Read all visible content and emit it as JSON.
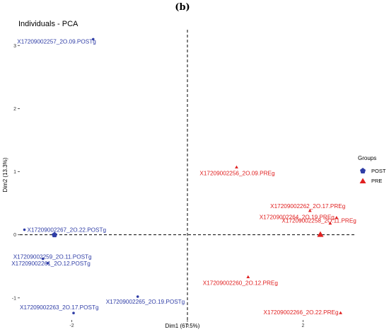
{
  "panel_label": "(b)",
  "chart_data": {
    "type": "scatter",
    "title": "Individuals - PCA",
    "xlabel": "Dim1 (67.5%)",
    "ylabel": "Dim2 (13.3%)",
    "xlim": [
      -2.9,
      2.9
    ],
    "ylim": [
      -1.35,
      3.25
    ],
    "xticks": [
      -2,
      0,
      2
    ],
    "yticks": [
      -1,
      0,
      1,
      2,
      3
    ],
    "reference_lines": {
      "x": 0,
      "y": 0,
      "style": "dashed"
    },
    "legend": {
      "title": "Groups",
      "position": "right",
      "entries": [
        "POST",
        "PRE"
      ]
    },
    "colors": {
      "POST": "#2f3da6",
      "PRE": "#e02020"
    },
    "series": [
      {
        "name": "POST",
        "marker": "circle",
        "points": [
          {
            "label": "X17209002257_2O.09.POSTg",
            "x": -1.63,
            "y": 3.1
          },
          {
            "label": "X17209002267_2O.22.POSTg",
            "x": -2.82,
            "y": 0.08
          },
          {
            "label": "X17209002259_2O.11.POSTg",
            "x": -2.5,
            "y": -0.38
          },
          {
            "label": "X17209002261_2O.12.POSTg",
            "x": -2.42,
            "y": -0.45
          },
          {
            "label": "X17209002263_2O.17.POSTg",
            "x": -1.97,
            "y": -1.24
          },
          {
            "label": "X17209002265_2O.19.POSTg",
            "x": -0.86,
            "y": -0.98
          }
        ],
        "centroid": {
          "x": -2.3,
          "y": 0.0
        }
      },
      {
        "name": "PRE",
        "marker": "triangle",
        "points": [
          {
            "label": "X17209002256_2O.09.PREg",
            "x": 0.85,
            "y": 1.07
          },
          {
            "label": "X17209002262_2O.17.PREg",
            "x": 2.12,
            "y": 0.38
          },
          {
            "label": "X17209002264_2O.19.PREg",
            "x": 2.58,
            "y": 0.27
          },
          {
            "label": "X17209002258_2O.11.PREg",
            "x": 2.47,
            "y": 0.18
          },
          {
            "label": "X17209002260_2O.12.PREg",
            "x": 1.05,
            "y": -0.67
          },
          {
            "label": "X17209002266_2O.22.PREg",
            "x": 2.65,
            "y": -1.24
          }
        ],
        "centroid": {
          "x": 2.3,
          "y": 0.0
        }
      }
    ]
  }
}
